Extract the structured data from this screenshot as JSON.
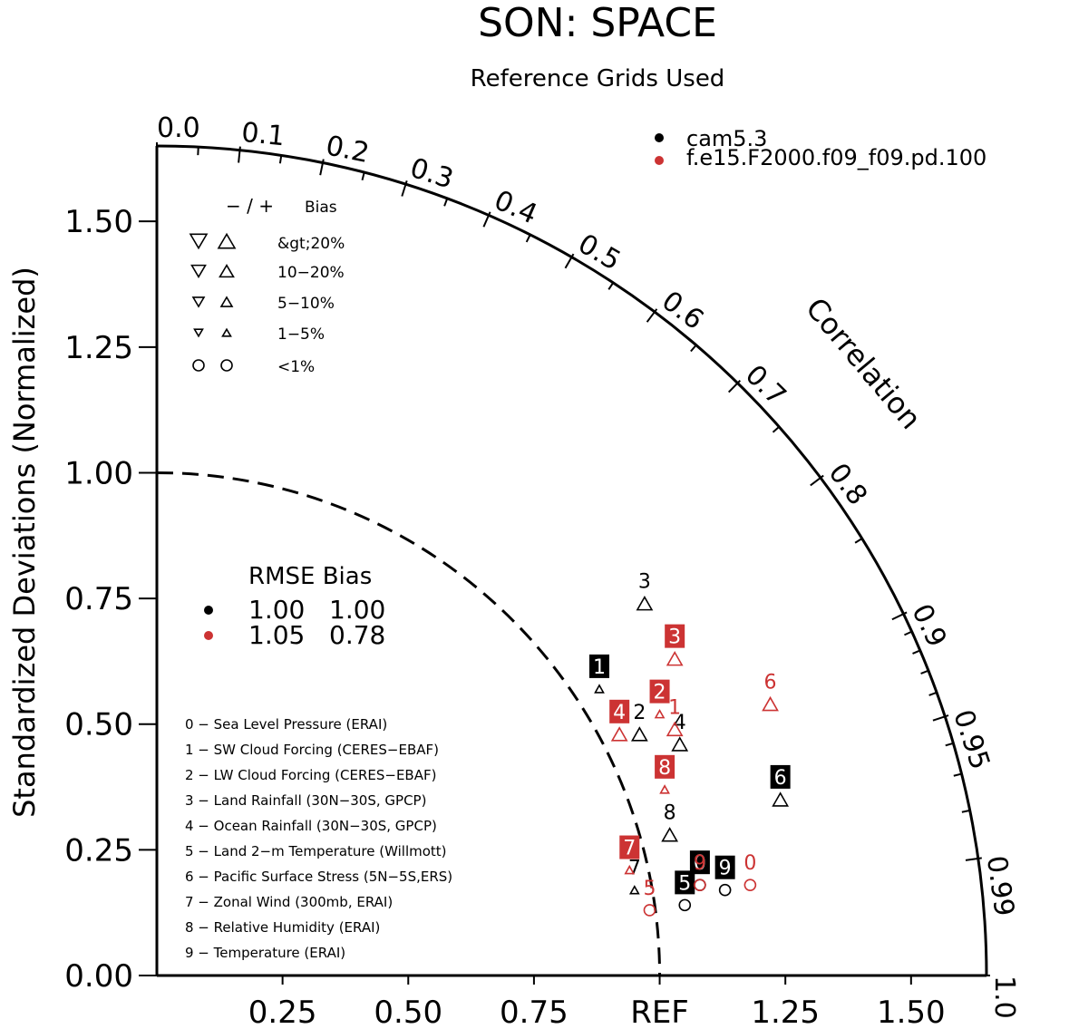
{
  "chart_data": {
    "type": "scatter",
    "title": "SON: SPACE",
    "subtitle": "Reference Grids Used",
    "ylabel": "Standardized Deviations (Normalized)",
    "correlation_label": "Correlation",
    "xlim": [
      0,
      1.65
    ],
    "ylim": [
      0,
      1.65
    ],
    "x_tick_labels": [
      {
        "v": 0.25,
        "label": "0.25"
      },
      {
        "v": 0.5,
        "label": "0.50"
      },
      {
        "v": 0.75,
        "label": "0.75"
      },
      {
        "v": 1.0,
        "label": "REF"
      },
      {
        "v": 1.25,
        "label": "1.25"
      },
      {
        "v": 1.5,
        "label": "1.50"
      }
    ],
    "y_tick_labels": [
      {
        "v": 0.0,
        "label": "0.00"
      },
      {
        "v": 0.25,
        "label": "0.25"
      },
      {
        "v": 0.5,
        "label": "0.50"
      },
      {
        "v": 0.75,
        "label": "0.75"
      },
      {
        "v": 1.0,
        "label": "1.00"
      },
      {
        "v": 1.25,
        "label": "1.25"
      },
      {
        "v": 1.5,
        "label": "1.50"
      }
    ],
    "correlation_ticks": [
      {
        "r": 0.0,
        "label": "0.0"
      },
      {
        "r": 0.1,
        "label": "0.1"
      },
      {
        "r": 0.2,
        "label": "0.2"
      },
      {
        "r": 0.3,
        "label": "0.3"
      },
      {
        "r": 0.4,
        "label": "0.4"
      },
      {
        "r": 0.5,
        "label": "0.5"
      },
      {
        "r": 0.6,
        "label": "0.6"
      },
      {
        "r": 0.7,
        "label": "0.7"
      },
      {
        "r": 0.8,
        "label": "0.8"
      },
      {
        "r": 0.9,
        "label": "0.9"
      },
      {
        "r": 0.95,
        "label": "0.95"
      },
      {
        "r": 0.99,
        "label": "0.99"
      },
      {
        "r": 1.0,
        "label": "1.0"
      }
    ],
    "series": [
      {
        "name": "cam5.3",
        "color": "#000000",
        "points": [
          {
            "id": "0",
            "x": 1.08,
            "y": 0.18,
            "marker": "circle",
            "label_box": true
          },
          {
            "id": "1",
            "x": 0.88,
            "y": 0.57,
            "marker": "triangle-up-small",
            "label_box": true
          },
          {
            "id": "2",
            "x": 0.96,
            "y": 0.48,
            "marker": "triangle-up",
            "label_box": false
          },
          {
            "id": "3",
            "x": 0.97,
            "y": 0.74,
            "marker": "triangle-up",
            "label_box": false
          },
          {
            "id": "4",
            "x": 1.04,
            "y": 0.46,
            "marker": "triangle-up",
            "label_box": false
          },
          {
            "id": "5",
            "x": 1.05,
            "y": 0.14,
            "marker": "circle",
            "label_box": true
          },
          {
            "id": "6",
            "x": 1.24,
            "y": 0.35,
            "marker": "triangle-up",
            "label_box": true
          },
          {
            "id": "7",
            "x": 0.95,
            "y": 0.17,
            "marker": "triangle-up-small",
            "label_box": false
          },
          {
            "id": "8",
            "x": 1.02,
            "y": 0.28,
            "marker": "triangle-up",
            "label_box": false
          },
          {
            "id": "9",
            "x": 1.13,
            "y": 0.17,
            "marker": "circle",
            "label_box": true
          }
        ]
      },
      {
        "name": "f.e15.F2000.f09_f09.pd.100",
        "color": "#cc3333",
        "points": [
          {
            "id": "0",
            "x": 1.18,
            "y": 0.18,
            "marker": "circle",
            "label_box": false
          },
          {
            "id": "1",
            "x": 1.03,
            "y": 0.49,
            "marker": "triangle-up",
            "label_box": false
          },
          {
            "id": "2",
            "x": 1.0,
            "y": 0.52,
            "marker": "triangle-up-small",
            "label_box": true
          },
          {
            "id": "3",
            "x": 1.03,
            "y": 0.63,
            "marker": "triangle-up",
            "label_box": true
          },
          {
            "id": "4",
            "x": 0.92,
            "y": 0.48,
            "marker": "triangle-up",
            "label_box": true
          },
          {
            "id": "5",
            "x": 0.98,
            "y": 0.13,
            "marker": "circle",
            "label_box": false
          },
          {
            "id": "6",
            "x": 1.22,
            "y": 0.54,
            "marker": "triangle-up",
            "label_box": false
          },
          {
            "id": "7",
            "x": 0.94,
            "y": 0.21,
            "marker": "triangle-up-small",
            "label_box": true
          },
          {
            "id": "8",
            "x": 1.01,
            "y": 0.37,
            "marker": "triangle-up-small",
            "label_box": true
          },
          {
            "id": "9",
            "x": 1.08,
            "y": 0.18,
            "marker": "circle",
            "label_box": false
          }
        ]
      }
    ],
    "bias_legend": {
      "header_signs": "− / +",
      "header_title": "Bias",
      "rows": [
        "&gt;20%",
        "10−20%",
        "5−10%",
        "1−5%",
        "<1%"
      ]
    },
    "rmse_legend": {
      "header": "RMSE Bias",
      "rows": [
        {
          "color": "#000000",
          "rmse": "1.00",
          "bias": "1.00"
        },
        {
          "color": "#cc3333",
          "rmse": "1.05",
          "bias": "0.78"
        }
      ]
    },
    "variables": [
      "0 − Sea Level Pressure (ERAI)",
      "1 − SW Cloud Forcing (CERES−EBAF)",
      "2 − LW Cloud Forcing (CERES−EBAF)",
      "3 − Land Rainfall (30N−30S, GPCP)",
      "4 − Ocean Rainfall (30N−30S, GPCP)",
      "5 − Land 2−m Temperature (Willmott)",
      "6 − Pacific Surface Stress (5N−5S,ERS)",
      "7 − Zonal Wind (300mb, ERAI)",
      "8 − Relative Humidity (ERAI)",
      "9 − Temperature (ERAI)"
    ]
  }
}
